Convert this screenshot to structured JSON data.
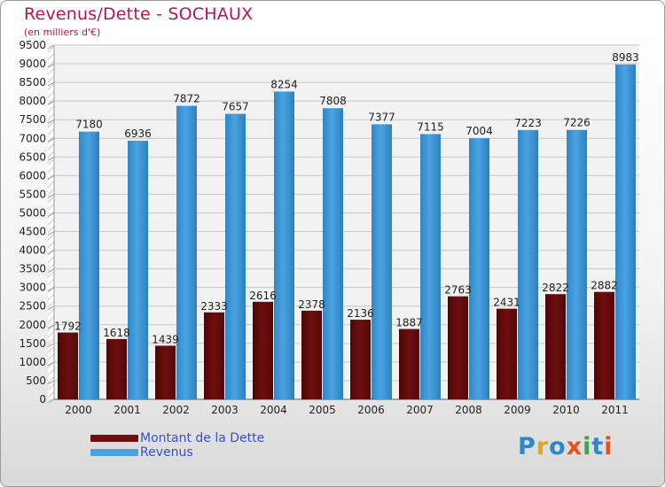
{
  "title": "Revenus/Dette - SOCHAUX",
  "subtitle": "(en milliers d'€)",
  "logo": {
    "text": "Proxiti",
    "letter_colors": [
      "#2f86c8",
      "#e8a21f",
      "#2f86c8",
      "#e8501f",
      "#3aa54a",
      "#2f86c8",
      "#e8501f"
    ]
  },
  "colors": {
    "debt": "#6e0f0f",
    "revenue": "#4aa3e0",
    "title": "#b5174f"
  },
  "chart_data": {
    "type": "bar",
    "title": "Revenus/Dette - SOCHAUX",
    "subtitle": "(en milliers d'€)",
    "categories": [
      "2000",
      "2001",
      "2002",
      "2003",
      "2004",
      "2005",
      "2006",
      "2007",
      "2008",
      "2009",
      "2010",
      "2011"
    ],
    "series": [
      {
        "name": "Montant de la Dette",
        "values": [
          1792,
          1618,
          1439,
          2333,
          2616,
          2378,
          2136,
          1887,
          2763,
          2431,
          2822,
          2882
        ]
      },
      {
        "name": "Revenus",
        "values": [
          7180,
          6936,
          7872,
          7657,
          8254,
          7808,
          7377,
          7115,
          7004,
          7223,
          7226,
          8983
        ]
      }
    ],
    "ylim": [
      0,
      9500
    ],
    "yticks": [
      0,
      500,
      1000,
      1500,
      2000,
      2500,
      3000,
      3500,
      4000,
      4500,
      5000,
      5500,
      6000,
      6500,
      7000,
      7500,
      8000,
      8500,
      9000,
      9500
    ],
    "grid": true,
    "legend": "bottom-left"
  }
}
